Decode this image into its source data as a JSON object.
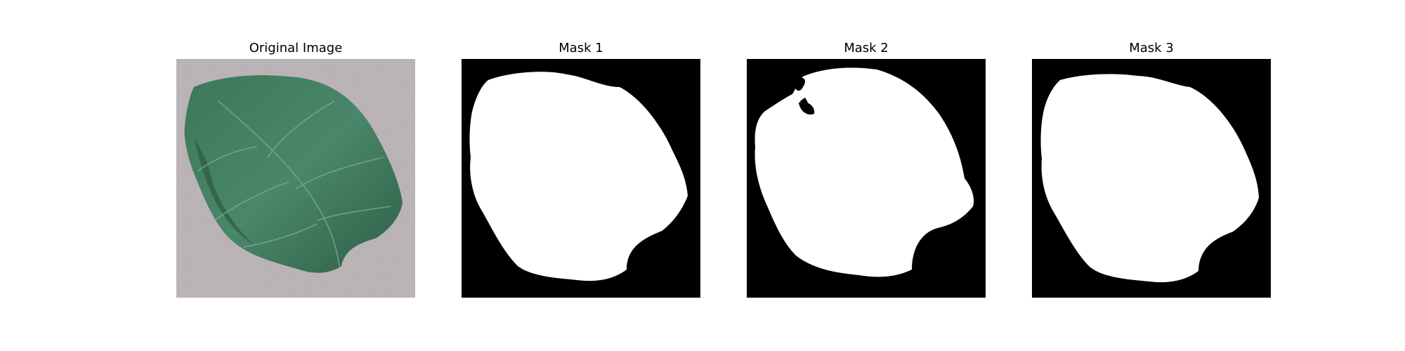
{
  "figure": {
    "panels": [
      {
        "title": "Original Image"
      },
      {
        "title": "Mask 1"
      },
      {
        "title": "Mask 2"
      },
      {
        "title": "Mask 3"
      }
    ]
  },
  "colors": {
    "background": "#bdb6b8",
    "leaf": "#3f7a5c",
    "leaf_dark": "#2f5e46",
    "mask_bg": "#000000",
    "mask_fg": "#ffffff"
  }
}
